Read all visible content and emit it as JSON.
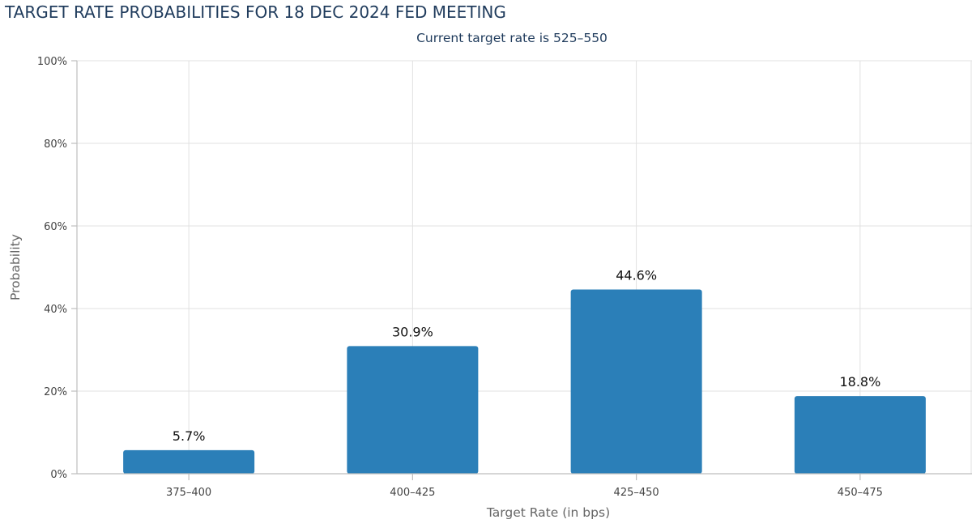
{
  "chart_data": {
    "type": "bar",
    "title": "TARGET RATE PROBABILITIES FOR 18 DEC 2024 FED MEETING",
    "subtitle": "Current target rate is 525–550",
    "xlabel": "Target Rate (in bps)",
    "ylabel": "Probability",
    "categories": [
      "375–400",
      "400–425",
      "425–450",
      "450–475"
    ],
    "values": [
      5.7,
      30.9,
      44.6,
      18.8
    ],
    "data_labels": [
      "5.7%",
      "30.9%",
      "44.6%",
      "18.8%"
    ],
    "ylim": [
      0,
      100
    ],
    "yticks": [
      0,
      20,
      40,
      60,
      80,
      100
    ],
    "ytick_labels": [
      "0%",
      "20%",
      "40%",
      "60%",
      "80%",
      "100%"
    ],
    "grid": true,
    "colors": {
      "bar": "#2b7fb8",
      "title": "#1f3b5c"
    }
  }
}
